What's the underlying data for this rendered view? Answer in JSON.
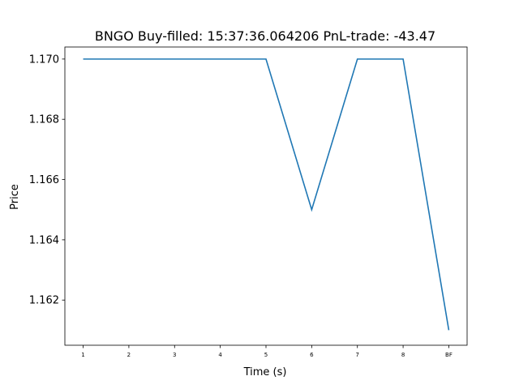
{
  "chart_data": {
    "type": "line",
    "title": "BNGO  Buy-filled:  15:37:36.064206  PnL-trade:  -43.47",
    "xlabel": "Time (s)",
    "ylabel": "Price",
    "categories": [
      "1",
      "2",
      "3",
      "4",
      "5",
      "6",
      "7",
      "8",
      "BF"
    ],
    "x": [
      1,
      2,
      3,
      4,
      5,
      6,
      7,
      8,
      9
    ],
    "series": [
      {
        "values": [
          1.17,
          1.17,
          1.17,
          1.17,
          1.17,
          1.165,
          1.17,
          1.17,
          1.161
        ],
        "color": "#1f77b4"
      }
    ],
    "xlim": [
      0.6,
      9.4
    ],
    "ylim": [
      1.1605,
      1.1704
    ],
    "yticks": [
      1.162,
      1.164,
      1.166,
      1.168,
      1.17
    ],
    "ytick_labels": [
      "1.162",
      "1.164",
      "1.166",
      "1.168",
      "1.170"
    ],
    "grid": false,
    "legend": false
  }
}
